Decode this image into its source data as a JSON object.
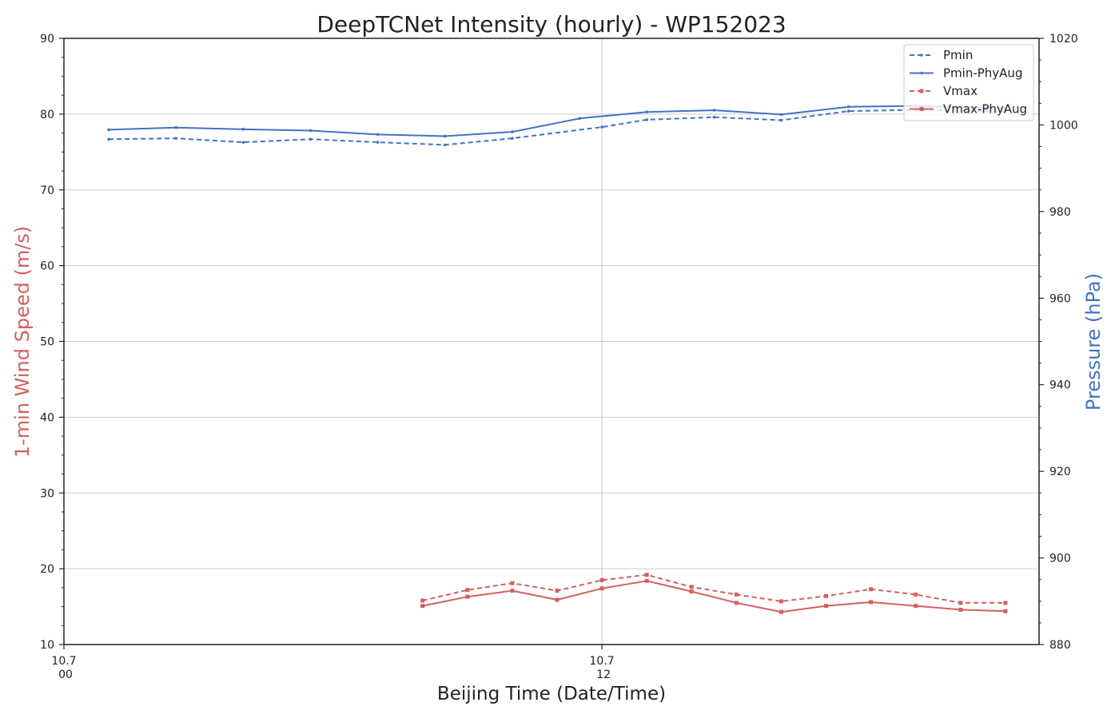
{
  "chart_data": {
    "type": "line",
    "title": "DeepTCNet Intensity (hourly) - WP152023",
    "xlabel": "Beijing Time (Date/Time)",
    "ylabel_left": "1-min Wind Speed (m/s)",
    "ylabel_right": "Pressure (hPa)",
    "x_unit": "hours",
    "xlim": [
      0,
      21.75
    ],
    "ylim_left": [
      10,
      90
    ],
    "ylim_right": [
      880,
      1020
    ],
    "x_ticks": [
      {
        "x": 0,
        "date": "10.7",
        "time": "00"
      },
      {
        "x": 12,
        "date": "10.7",
        "time": "12"
      }
    ],
    "y_ticks_left": [
      10,
      20,
      30,
      40,
      50,
      60,
      70,
      80,
      90
    ],
    "y_ticks_right": [
      880,
      900,
      920,
      940,
      960,
      980,
      1000,
      1020
    ],
    "grid": true,
    "legend_position": "top-right",
    "colors": {
      "pressure": "#4472c4",
      "wind": "#d45f5f"
    },
    "series": [
      {
        "name": "Pmin",
        "axis": "right",
        "style": "dashed",
        "color": "#4472c4",
        "x": [
          1,
          2.5,
          4,
          5.5,
          7,
          8.5,
          10,
          12,
          13,
          14.5,
          16,
          17.5,
          19,
          21
        ],
        "y": [
          996.7,
          996.9,
          996.0,
          996.7,
          996.0,
          995.4,
          996.9,
          999.5,
          1001.2,
          1001.8,
          1001.1,
          1003.2,
          1003.5,
          1003.1
        ]
      },
      {
        "name": "Pmin-PhyAug",
        "axis": "right",
        "style": "solid",
        "color": "#4472c4",
        "x": [
          1,
          2.5,
          4,
          5.5,
          7,
          8.5,
          10,
          11.5,
          13,
          14.5,
          16,
          17.5,
          19,
          21
        ],
        "y": [
          998.9,
          999.4,
          999.0,
          998.7,
          997.8,
          997.4,
          998.4,
          1001.5,
          1003.0,
          1003.4,
          1002.4,
          1004.2,
          1004.4,
          1003.8
        ]
      },
      {
        "name": "Vmax",
        "axis": "left",
        "style": "dashed",
        "color": "#d45f5f",
        "x": [
          8,
          9,
          10,
          11,
          12,
          13,
          14,
          15,
          16,
          17,
          18,
          19,
          20,
          21
        ],
        "y": [
          15.8,
          17.2,
          18.1,
          17.1,
          18.5,
          19.2,
          17.6,
          16.6,
          15.7,
          16.4,
          17.3,
          16.6,
          15.5,
          15.5
        ]
      },
      {
        "name": "Vmax-PhyAug",
        "axis": "left",
        "style": "solid",
        "color": "#d45f5f",
        "x": [
          8,
          9,
          10,
          11,
          12,
          13,
          14,
          15,
          16,
          17,
          18,
          19,
          20,
          21
        ],
        "y": [
          15.1,
          16.3,
          17.1,
          15.9,
          17.4,
          18.4,
          17.0,
          15.5,
          14.3,
          15.1,
          15.6,
          15.1,
          14.6,
          14.4
        ]
      }
    ]
  }
}
